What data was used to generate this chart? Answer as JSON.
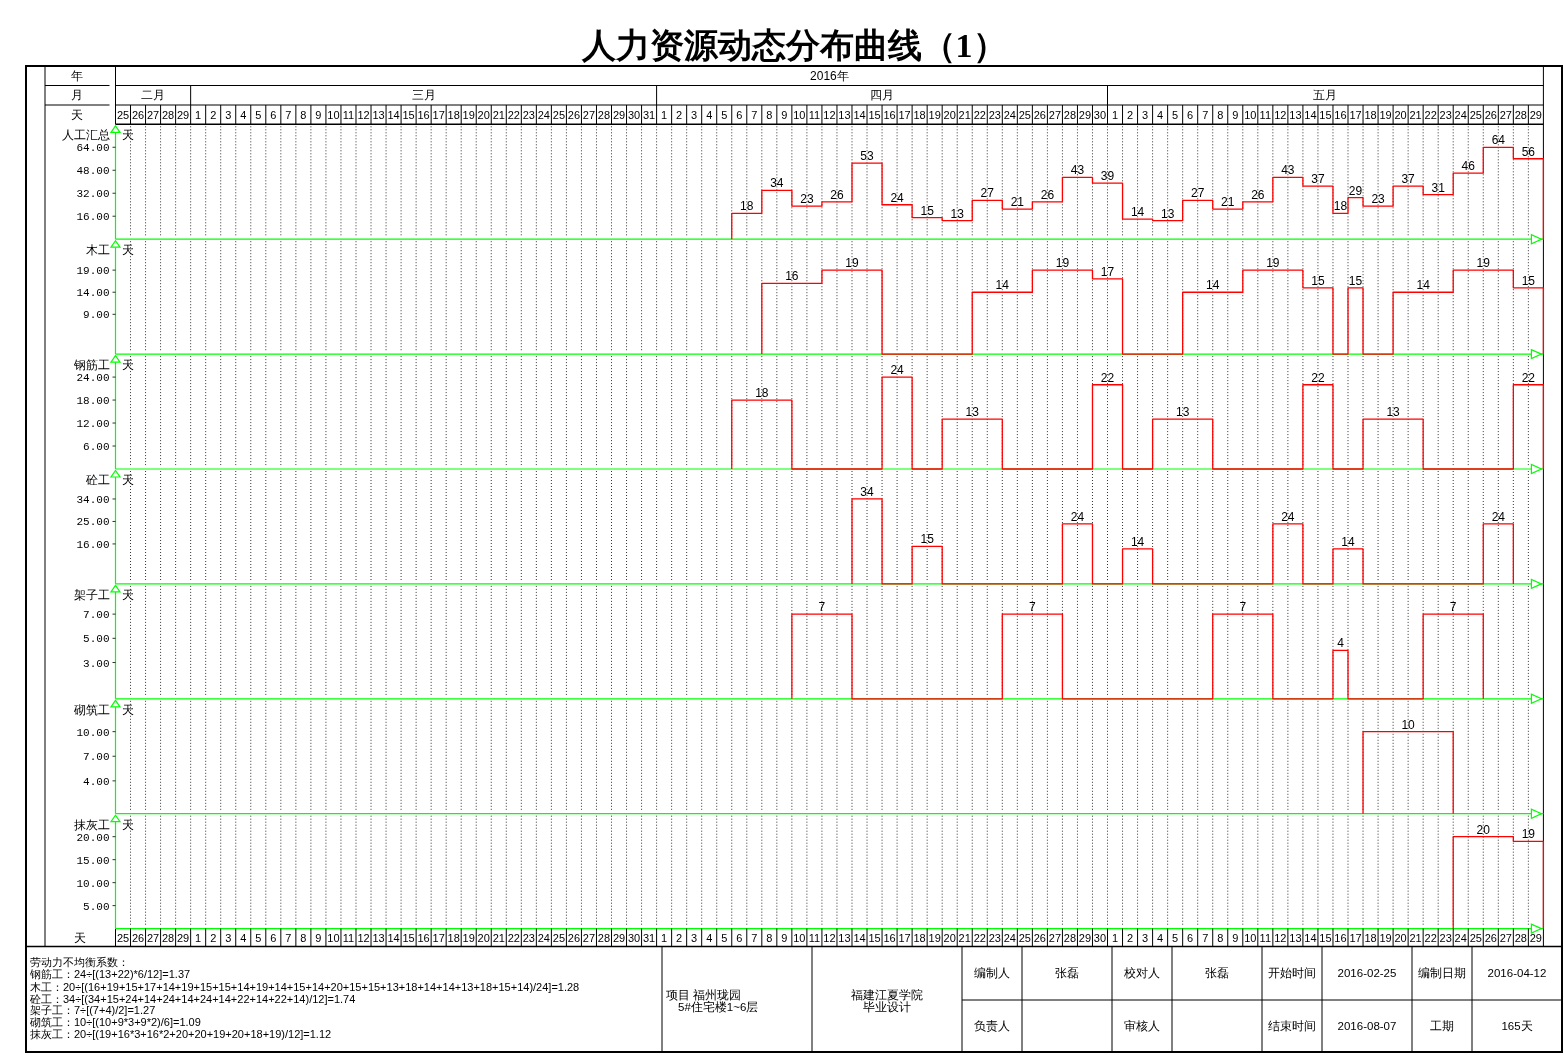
{
  "chart_data": [
    {
      "type": "step",
      "title": "人力资源动态分布曲线（1）",
      "ylabel": "人工汇总",
      "annotations": [
        "天",
        "年",
        "2016年",
        "月",
        "二月",
        "三月",
        "四月",
        "五月"
      ],
      "tick_labels": "y",
      "grid": "x",
      "x": [
        "2016-04-06",
        "2016-04-06",
        "2016-04-07",
        "2016-04-08",
        "2016-04-09",
        "2016-04-10",
        "2016-04-11",
        "2016-04-12",
        "2016-04-13",
        "2016-04-14",
        "2016-04-15",
        "2016-04-16",
        "2016-04-17",
        "2016-04-18",
        "2016-04-19",
        "2016-04-20",
        "2016-04-21",
        "2016-04-22",
        "2016-04-23",
        "2016-04-24",
        "2016-04-25",
        "2016-04-26",
        "2016-04-27",
        "2016-04-28",
        "2016-04-29",
        "2016-04-30",
        "2016-05-01",
        "2016-05-02",
        "2016-05-03",
        "2016-05-04",
        "2016-05-05",
        "2016-05-06",
        "2016-05-07",
        "2016-05-08",
        "2016-05-09",
        "2016-05-10",
        "2016-05-11",
        "2016-05-12",
        "2016-05-13",
        "2016-05-14",
        "2016-05-15",
        "2016-05-16",
        "2016-05-17",
        "2016-05-18",
        "2016-05-19",
        "2016-05-20",
        "2016-05-21",
        "2016-05-22",
        "2016-05-23",
        "2016-05-24",
        "2016-05-25",
        "2016-05-26",
        "2016-05-27",
        "2016-05-28",
        "2016-05-29",
        "2016-05-30"
      ],
      "xlim": [
        "2016-02-25",
        "2016-05-30"
      ],
      "ylim": [
        0,
        80
      ],
      "yticks": [
        {
          "value": 16,
          "label": "16.00"
        },
        {
          "value": 32,
          "label": "32.00"
        },
        {
          "value": 48,
          "label": "48.00"
        },
        {
          "value": 64,
          "label": "64.00"
        }
      ],
      "x2label": "天",
      "x2lim": [
        "2016-02-25",
        "2016-05-30"
      ],
      "x2ticks": [
        {
          "value": "2016-02-25T12:00",
          "label": "25"
        },
        {
          "value": "2016-02-26T12:00",
          "label": "26"
        },
        {
          "value": "2016-02-27T12:00",
          "label": "27"
        },
        {
          "value": "2016-02-28T12:00",
          "label": "28"
        },
        {
          "value": "2016-02-29T12:00",
          "label": "29"
        },
        {
          "value": "2016-03-01T12:00",
          "label": "1"
        },
        {
          "value": "2016-03-02T12:00",
          "label": "2"
        },
        {
          "value": "2016-03-03T12:00",
          "label": "3"
        },
        {
          "value": "2016-03-04T12:00",
          "label": "4"
        },
        {
          "value": "2016-03-05T12:00",
          "label": "5"
        },
        {
          "value": "2016-03-06T12:00",
          "label": "6"
        },
        {
          "value": "2016-03-07T12:00",
          "label": "7"
        },
        {
          "value": "2016-03-08T12:00",
          "label": "8"
        },
        {
          "value": "2016-03-09T12:00",
          "label": "9"
        },
        {
          "value": "2016-03-10T12:00",
          "label": "10"
        },
        {
          "value": "2016-03-11T12:00",
          "label": "11"
        },
        {
          "value": "2016-03-12T12:00",
          "label": "12"
        },
        {
          "value": "2016-03-13T12:00",
          "label": "13"
        },
        {
          "value": "2016-03-14T12:00",
          "label": "14"
        },
        {
          "value": "2016-03-15T12:00",
          "label": "15"
        },
        {
          "value": "2016-03-16T12:00",
          "label": "16"
        },
        {
          "value": "2016-03-17T12:00",
          "label": "17"
        },
        {
          "value": "2016-03-18T12:00",
          "label": "18"
        },
        {
          "value": "2016-03-19T12:00",
          "label": "19"
        },
        {
          "value": "2016-03-20T12:00",
          "label": "20"
        },
        {
          "value": "2016-03-21T12:00",
          "label": "21"
        },
        {
          "value": "2016-03-22T12:00",
          "label": "22"
        },
        {
          "value": "2016-03-23T12:00",
          "label": "23"
        },
        {
          "value": "2016-03-24T12:00",
          "label": "24"
        },
        {
          "value": "2016-03-25T12:00",
          "label": "25"
        },
        {
          "value": "2016-03-26T12:00",
          "label": "26"
        },
        {
          "value": "2016-03-27T12:00",
          "label": "27"
        },
        {
          "value": "2016-03-28T12:00",
          "label": "28"
        },
        {
          "value": "2016-03-29T12:00",
          "label": "29"
        },
        {
          "value": "2016-03-30T12:00",
          "label": "30"
        },
        {
          "value": "2016-03-31T12:00",
          "label": "31"
        },
        {
          "value": "2016-04-01T12:00",
          "label": "1"
        },
        {
          "value": "2016-04-02T12:00",
          "label": "2"
        },
        {
          "value": "2016-04-03T12:00",
          "label": "3"
        },
        {
          "value": "2016-04-04T12:00",
          "label": "4"
        },
        {
          "value": "2016-04-05T12:00",
          "label": "5"
        },
        {
          "value": "2016-04-06T12:00",
          "label": "6"
        },
        {
          "value": "2016-04-07T12:00",
          "label": "7"
        },
        {
          "value": "2016-04-08T12:00",
          "label": "8"
        },
        {
          "value": "2016-04-09T12:00",
          "label": "9"
        },
        {
          "value": "2016-04-10T12:00",
          "label": "10"
        },
        {
          "value": "2016-04-11T12:00",
          "label": "11"
        },
        {
          "value": "2016-04-12T12:00",
          "label": "12"
        },
        {
          "value": "2016-04-13T12:00",
          "label": "13"
        },
        {
          "value": "2016-04-14T12:00",
          "label": "14"
        },
        {
          "value": "2016-04-15T12:00",
          "label": "15"
        },
        {
          "value": "2016-04-16T12:00",
          "label": "16"
        },
        {
          "value": "2016-04-17T12:00",
          "label": "17"
        },
        {
          "value": "2016-04-18T12:00",
          "label": "18"
        },
        {
          "value": "2016-04-19T12:00",
          "label": "19"
        },
        {
          "value": "2016-04-20T12:00",
          "label": "20"
        },
        {
          "value": "2016-04-21T12:00",
          "label": "21"
        },
        {
          "value": "2016-04-22T12:00",
          "label": "22"
        },
        {
          "value": "2016-04-23T12:00",
          "label": "23"
        },
        {
          "value": "2016-04-24T12:00",
          "label": "24"
        },
        {
          "value": "2016-04-25T12:00",
          "label": "25"
        },
        {
          "value": "2016-04-26T12:00",
          "label": "26"
        },
        {
          "value": "2016-04-27T12:00",
          "label": "27"
        },
        {
          "value": "2016-04-28T12:00",
          "label": "28"
        },
        {
          "value": "2016-04-29T12:00",
          "label": "29"
        },
        {
          "value": "2016-04-30T12:00",
          "label": "30"
        },
        {
          "value": "2016-05-01T12:00",
          "label": "1"
        },
        {
          "value": "2016-05-02T12:00",
          "label": "2"
        },
        {
          "value": "2016-05-03T12:00",
          "label": "3"
        },
        {
          "value": "2016-05-04T12:00",
          "label": "4"
        },
        {
          "value": "2016-05-05T12:00",
          "label": "5"
        },
        {
          "value": "2016-05-06T12:00",
          "label": "6"
        },
        {
          "value": "2016-05-07T12:00",
          "label": "7"
        },
        {
          "value": "2016-05-08T12:00",
          "label": "8"
        },
        {
          "value": "2016-05-09T12:00",
          "label": "9"
        },
        {
          "value": "2016-05-10T12:00",
          "label": "10"
        },
        {
          "value": "2016-05-11T12:00",
          "label": "11"
        },
        {
          "value": "2016-05-12T12:00",
          "label": "12"
        },
        {
          "value": "2016-05-13T12:00",
          "label": "13"
        },
        {
          "value": "2016-05-14T12:00",
          "label": "14"
        },
        {
          "value": "2016-05-15T12:00",
          "label": "15"
        },
        {
          "value": "2016-05-16T12:00",
          "label": "16"
        },
        {
          "value": "2016-05-17T12:00",
          "label": "17"
        },
        {
          "value": "2016-05-18T12:00",
          "label": "18"
        },
        {
          "value": "2016-05-19T12:00",
          "label": "19"
        },
        {
          "value": "2016-05-20T12:00",
          "label": "20"
        },
        {
          "value": "2016-05-21T12:00",
          "label": "21"
        },
        {
          "value": "2016-05-22T12:00",
          "label": "22"
        },
        {
          "value": "2016-05-23T12:00",
          "label": "23"
        },
        {
          "value": "2016-05-24T12:00",
          "label": "24"
        },
        {
          "value": "2016-05-25T12:00",
          "label": "25"
        },
        {
          "value": "2016-05-26T12:00",
          "label": "26"
        },
        {
          "value": "2016-05-27T12:00",
          "label": "27"
        },
        {
          "value": "2016-05-28T12:00",
          "label": "28"
        },
        {
          "value": "2016-05-29T12:00",
          "label": "29"
        }
      ],
      "series": [
        {
          "color": "#ff0000",
          "values": [
            0,
            18,
            18,
            34,
            34,
            23,
            23,
            26,
            26,
            53,
            53,
            24,
            24,
            15,
            15,
            13,
            13,
            27,
            27,
            21,
            21,
            26,
            26,
            43,
            43,
            39,
            39,
            14,
            14,
            13,
            13,
            27,
            27,
            21,
            21,
            26,
            26,
            43,
            43,
            37,
            37,
            18,
            29,
            23,
            23,
            37,
            37,
            31,
            31,
            46,
            46,
            64,
            64,
            56,
            56,
            0
          ],
          "value_labels": [
            null,
            null,
            "18",
            null,
            "34",
            null,
            "23",
            null,
            "26",
            null,
            "53",
            null,
            "24",
            null,
            "15",
            null,
            "13",
            null,
            "27",
            null,
            "21",
            null,
            "26",
            null,
            "43",
            null,
            "39",
            null,
            "14",
            null,
            "13",
            null,
            "27",
            null,
            "21",
            null,
            "26",
            null,
            "43",
            null,
            "37",
            "18",
            "29",
            null,
            "23",
            null,
            "37",
            null,
            "31",
            null,
            "46",
            null,
            "64",
            null,
            "56",
            null
          ]
        }
      ]
    },
    {
      "type": "step",
      "ylabel": "木工",
      "annotations": [
        "天"
      ],
      "tick_labels": "y",
      "grid": "x",
      "x": [
        "2016-04-08",
        "2016-04-08",
        "2016-04-09",
        "2016-04-10",
        "2016-04-11",
        "2016-04-12",
        "2016-04-13",
        "2016-04-14",
        "2016-04-15",
        "2016-04-16",
        "2016-04-22",
        "2016-04-23",
        "2016-04-24",
        "2016-04-25",
        "2016-04-26",
        "2016-04-27",
        "2016-04-28",
        "2016-04-29",
        "2016-04-30",
        "2016-05-01",
        "2016-05-02",
        "2016-05-06",
        "2016-05-07",
        "2016-05-08",
        "2016-05-09",
        "2016-05-10",
        "2016-05-11",
        "2016-05-12",
        "2016-05-13",
        "2016-05-14",
        "2016-05-15",
        "2016-05-16",
        "2016-05-17",
        "2016-05-18",
        "2016-05-20",
        "2016-05-21",
        "2016-05-22",
        "2016-05-23",
        "2016-05-24",
        "2016-05-25",
        "2016-05-26",
        "2016-05-27",
        "2016-05-28",
        "2016-05-29",
        "2016-05-30"
      ],
      "xlim": [
        "2016-02-25",
        "2016-05-30"
      ],
      "ylim": [
        0,
        26
      ],
      "yticks": [
        {
          "value": 9,
          "label": "9.00"
        },
        {
          "value": 14,
          "label": "14.00"
        },
        {
          "value": 19,
          "label": "19.00"
        }
      ],
      "series": [
        {
          "color": "#ff0000",
          "values": [
            0,
            16,
            16,
            16,
            16,
            19,
            19,
            19,
            19,
            0,
            14,
            14,
            14,
            14,
            19,
            19,
            19,
            19,
            17,
            17,
            0,
            14,
            14,
            14,
            14,
            19,
            19,
            19,
            19,
            15,
            15,
            0,
            15,
            0,
            14,
            14,
            14,
            14,
            19,
            19,
            19,
            19,
            15,
            15,
            0
          ],
          "value_labels": [
            null,
            null,
            null,
            "16",
            null,
            null,
            null,
            "19",
            null,
            null,
            null,
            null,
            "14",
            null,
            null,
            null,
            "19",
            null,
            null,
            "17",
            null,
            null,
            null,
            "14",
            null,
            null,
            null,
            "19",
            null,
            null,
            "15",
            null,
            "15",
            null,
            null,
            null,
            "14",
            null,
            null,
            null,
            "19",
            null,
            null,
            "15",
            null
          ]
        }
      ]
    },
    {
      "type": "step",
      "ylabel": "钢筋工",
      "annotations": [
        "天"
      ],
      "tick_labels": "y",
      "grid": "x",
      "x": [
        "2016-04-06",
        "2016-04-06",
        "2016-04-07",
        "2016-04-08",
        "2016-04-09",
        "2016-04-10",
        "2016-04-16",
        "2016-04-17",
        "2016-04-18",
        "2016-04-20",
        "2016-04-21",
        "2016-04-22",
        "2016-04-23",
        "2016-04-24",
        "2016-04-30",
        "2016-05-01",
        "2016-05-02",
        "2016-05-04",
        "2016-05-05",
        "2016-05-06",
        "2016-05-07",
        "2016-05-08",
        "2016-05-14",
        "2016-05-15",
        "2016-05-16",
        "2016-05-18",
        "2016-05-19",
        "2016-05-20",
        "2016-05-21",
        "2016-05-22",
        "2016-05-28",
        "2016-05-29",
        "2016-05-30"
      ],
      "xlim": [
        "2016-02-25",
        "2016-05-30"
      ],
      "ylim": [
        0,
        30
      ],
      "yticks": [
        {
          "value": 6,
          "label": "6.00"
        },
        {
          "value": 12,
          "label": "12.00"
        },
        {
          "value": 18,
          "label": "18.00"
        },
        {
          "value": 24,
          "label": "24.00"
        }
      ],
      "series": [
        {
          "color": "#ff0000",
          "values": [
            0,
            18,
            18,
            18,
            18,
            0,
            24,
            24,
            0,
            13,
            13,
            13,
            13,
            0,
            22,
            22,
            0,
            13,
            13,
            13,
            13,
            0,
            22,
            22,
            0,
            13,
            13,
            13,
            13,
            0,
            22,
            22,
            0
          ],
          "value_labels": [
            null,
            null,
            null,
            "18",
            null,
            null,
            null,
            "24",
            null,
            null,
            null,
            "13",
            null,
            null,
            null,
            "22",
            null,
            null,
            null,
            "13",
            null,
            null,
            null,
            "22",
            null,
            null,
            null,
            "13",
            null,
            null,
            null,
            "22",
            null
          ]
        }
      ]
    },
    {
      "type": "step",
      "ylabel": "砼工",
      "annotations": [
        "天"
      ],
      "tick_labels": "y",
      "grid": "x",
      "x": [
        "2016-04-14",
        "2016-04-14",
        "2016-04-15",
        "2016-04-16",
        "2016-04-18",
        "2016-04-19",
        "2016-04-20",
        "2016-04-28",
        "2016-04-29",
        "2016-04-30",
        "2016-05-02",
        "2016-05-03",
        "2016-05-04",
        "2016-05-12",
        "2016-05-13",
        "2016-05-14",
        "2016-05-16",
        "2016-05-17",
        "2016-05-18",
        "2016-05-26",
        "2016-05-27",
        "2016-05-28"
      ],
      "xlim": [
        "2016-02-25",
        "2016-05-30"
      ],
      "ylim": [
        0,
        46
      ],
      "yticks": [
        {
          "value": 16,
          "label": "16.00"
        },
        {
          "value": 25,
          "label": "25.00"
        },
        {
          "value": 34,
          "label": "34.00"
        }
      ],
      "series": [
        {
          "color": "#ff0000",
          "values": [
            0,
            34,
            34,
            0,
            15,
            15,
            0,
            24,
            24,
            0,
            14,
            14,
            0,
            24,
            24,
            0,
            14,
            14,
            0,
            24,
            24,
            0
          ],
          "value_labels": [
            null,
            null,
            "34",
            null,
            null,
            "15",
            null,
            null,
            "24",
            null,
            null,
            "14",
            null,
            null,
            "24",
            null,
            null,
            "14",
            null,
            null,
            "24",
            null
          ]
        }
      ]
    },
    {
      "type": "step",
      "ylabel": "架子工",
      "annotations": [
        "天"
      ],
      "tick_labels": "y",
      "grid": "x",
      "x": [
        "2016-04-10",
        "2016-04-10",
        "2016-04-11",
        "2016-04-12",
        "2016-04-13",
        "2016-04-14",
        "2016-04-24",
        "2016-04-25",
        "2016-04-26",
        "2016-04-27",
        "2016-04-28",
        "2016-05-08",
        "2016-05-09",
        "2016-05-10",
        "2016-05-11",
        "2016-05-12",
        "2016-05-16",
        "2016-05-17",
        "2016-05-22",
        "2016-05-23",
        "2016-05-24",
        "2016-05-25",
        "2016-05-26"
      ],
      "xlim": [
        "2016-02-25",
        "2016-05-30"
      ],
      "ylim": [
        0,
        9.5
      ],
      "yticks": [
        {
          "value": 3,
          "label": "3.00"
        },
        {
          "value": 5,
          "label": "5.00"
        },
        {
          "value": 7,
          "label": "7.00"
        }
      ],
      "series": [
        {
          "color": "#ff0000",
          "values": [
            0,
            7,
            7,
            7,
            7,
            0,
            7,
            7,
            7,
            7,
            0,
            7,
            7,
            7,
            7,
            0,
            4,
            0,
            7,
            7,
            7,
            7,
            0
          ],
          "value_labels": [
            null,
            null,
            null,
            "7",
            null,
            null,
            null,
            null,
            "7",
            null,
            null,
            null,
            null,
            "7",
            null,
            null,
            "4",
            null,
            null,
            null,
            "7",
            null,
            null
          ]
        }
      ]
    },
    {
      "type": "step",
      "ylabel": "砌筑工",
      "annotations": [
        "天"
      ],
      "tick_labels": "y",
      "grid": "x",
      "x": [
        "2016-05-18",
        "2016-05-18",
        "2016-05-19",
        "2016-05-20",
        "2016-05-21",
        "2016-05-22",
        "2016-05-23",
        "2016-05-24"
      ],
      "xlim": [
        "2016-02-25",
        "2016-05-30"
      ],
      "ylim": [
        0,
        14
      ],
      "yticks": [
        {
          "value": 4,
          "label": "4.00"
        },
        {
          "value": 7,
          "label": "7.00"
        },
        {
          "value": 10,
          "label": "10.00"
        }
      ],
      "series": [
        {
          "color": "#ff0000",
          "values": [
            0,
            10,
            10,
            10,
            10,
            10,
            10,
            0
          ],
          "value_labels": [
            null,
            null,
            null,
            null,
            "10",
            null,
            null,
            null
          ]
        }
      ]
    },
    {
      "type": "step",
      "ylabel": "抹灰工",
      "annotations": [
        "天"
      ],
      "grid": "x",
      "xlabel": "天",
      "x": [
        "2016-05-24",
        "2016-05-24",
        "2016-05-25",
        "2016-05-26",
        "2016-05-27",
        "2016-05-28",
        "2016-05-29",
        "2016-05-30"
      ],
      "xlim": [
        "2016-02-25",
        "2016-05-30"
      ],
      "ylim": [
        0,
        25
      ],
      "yticks": [
        {
          "value": 5,
          "label": "5.00"
        },
        {
          "value": 10,
          "label": "10.00"
        },
        {
          "value": 15,
          "label": "15.00"
        },
        {
          "value": 20,
          "label": "20.00"
        }
      ],
      "xticks": [
        {
          "value": "2016-02-25T12:00",
          "label": "25"
        },
        {
          "value": "2016-02-26T12:00",
          "label": "26"
        },
        {
          "value": "2016-02-27T12:00",
          "label": "27"
        },
        {
          "value": "2016-02-28T12:00",
          "label": "28"
        },
        {
          "value": "2016-02-29T12:00",
          "label": "29"
        },
        {
          "value": "2016-03-01T12:00",
          "label": "1"
        },
        {
          "value": "2016-03-02T12:00",
          "label": "2"
        },
        {
          "value": "2016-03-03T12:00",
          "label": "3"
        },
        {
          "value": "2016-03-04T12:00",
          "label": "4"
        },
        {
          "value": "2016-03-05T12:00",
          "label": "5"
        },
        {
          "value": "2016-03-06T12:00",
          "label": "6"
        },
        {
          "value": "2016-03-07T12:00",
          "label": "7"
        },
        {
          "value": "2016-03-08T12:00",
          "label": "8"
        },
        {
          "value": "2016-03-09T12:00",
          "label": "9"
        },
        {
          "value": "2016-03-10T12:00",
          "label": "10"
        },
        {
          "value": "2016-03-11T12:00",
          "label": "11"
        },
        {
          "value": "2016-03-12T12:00",
          "label": "12"
        },
        {
          "value": "2016-03-13T12:00",
          "label": "13"
        },
        {
          "value": "2016-03-14T12:00",
          "label": "14"
        },
        {
          "value": "2016-03-15T12:00",
          "label": "15"
        },
        {
          "value": "2016-03-16T12:00",
          "label": "16"
        },
        {
          "value": "2016-03-17T12:00",
          "label": "17"
        },
        {
          "value": "2016-03-18T12:00",
          "label": "18"
        },
        {
          "value": "2016-03-19T12:00",
          "label": "19"
        },
        {
          "value": "2016-03-20T12:00",
          "label": "20"
        },
        {
          "value": "2016-03-21T12:00",
          "label": "21"
        },
        {
          "value": "2016-03-22T12:00",
          "label": "22"
        },
        {
          "value": "2016-03-23T12:00",
          "label": "23"
        },
        {
          "value": "2016-03-24T12:00",
          "label": "24"
        },
        {
          "value": "2016-03-25T12:00",
          "label": "25"
        },
        {
          "value": "2016-03-26T12:00",
          "label": "26"
        },
        {
          "value": "2016-03-27T12:00",
          "label": "27"
        },
        {
          "value": "2016-03-28T12:00",
          "label": "28"
        },
        {
          "value": "2016-03-29T12:00",
          "label": "29"
        },
        {
          "value": "2016-03-30T12:00",
          "label": "30"
        },
        {
          "value": "2016-03-31T12:00",
          "label": "31"
        },
        {
          "value": "2016-04-01T12:00",
          "label": "1"
        },
        {
          "value": "2016-04-02T12:00",
          "label": "2"
        },
        {
          "value": "2016-04-03T12:00",
          "label": "3"
        },
        {
          "value": "2016-04-04T12:00",
          "label": "4"
        },
        {
          "value": "2016-04-05T12:00",
          "label": "5"
        },
        {
          "value": "2016-04-06T12:00",
          "label": "6"
        },
        {
          "value": "2016-04-07T12:00",
          "label": "7"
        },
        {
          "value": "2016-04-08T12:00",
          "label": "8"
        },
        {
          "value": "2016-04-09T12:00",
          "label": "9"
        },
        {
          "value": "2016-04-10T12:00",
          "label": "10"
        },
        {
          "value": "2016-04-11T12:00",
          "label": "11"
        },
        {
          "value": "2016-04-12T12:00",
          "label": "12"
        },
        {
          "value": "2016-04-13T12:00",
          "label": "13"
        },
        {
          "value": "2016-04-14T12:00",
          "label": "14"
        },
        {
          "value": "2016-04-15T12:00",
          "label": "15"
        },
        {
          "value": "2016-04-16T12:00",
          "label": "16"
        },
        {
          "value": "2016-04-17T12:00",
          "label": "17"
        },
        {
          "value": "2016-04-18T12:00",
          "label": "18"
        },
        {
          "value": "2016-04-19T12:00",
          "label": "19"
        },
        {
          "value": "2016-04-20T12:00",
          "label": "20"
        },
        {
          "value": "2016-04-21T12:00",
          "label": "21"
        },
        {
          "value": "2016-04-22T12:00",
          "label": "22"
        },
        {
          "value": "2016-04-23T12:00",
          "label": "23"
        },
        {
          "value": "2016-04-24T12:00",
          "label": "24"
        },
        {
          "value": "2016-04-25T12:00",
          "label": "25"
        },
        {
          "value": "2016-04-26T12:00",
          "label": "26"
        },
        {
          "value": "2016-04-27T12:00",
          "label": "27"
        },
        {
          "value": "2016-04-28T12:00",
          "label": "28"
        },
        {
          "value": "2016-04-29T12:00",
          "label": "29"
        },
        {
          "value": "2016-04-30T12:00",
          "label": "30"
        },
        {
          "value": "2016-05-01T12:00",
          "label": "1"
        },
        {
          "value": "2016-05-02T12:00",
          "label": "2"
        },
        {
          "value": "2016-05-03T12:00",
          "label": "3"
        },
        {
          "value": "2016-05-04T12:00",
          "label": "4"
        },
        {
          "value": "2016-05-05T12:00",
          "label": "5"
        },
        {
          "value": "2016-05-06T12:00",
          "label": "6"
        },
        {
          "value": "2016-05-07T12:00",
          "label": "7"
        },
        {
          "value": "2016-05-08T12:00",
          "label": "8"
        },
        {
          "value": "2016-05-09T12:00",
          "label": "9"
        },
        {
          "value": "2016-05-10T12:00",
          "label": "10"
        },
        {
          "value": "2016-05-11T12:00",
          "label": "11"
        },
        {
          "value": "2016-05-12T12:00",
          "label": "12"
        },
        {
          "value": "2016-05-13T12:00",
          "label": "13"
        },
        {
          "value": "2016-05-14T12:00",
          "label": "14"
        },
        {
          "value": "2016-05-15T12:00",
          "label": "15"
        },
        {
          "value": "2016-05-16T12:00",
          "label": "16"
        },
        {
          "value": "2016-05-17T12:00",
          "label": "17"
        },
        {
          "value": "2016-05-18T12:00",
          "label": "18"
        },
        {
          "value": "2016-05-19T12:00",
          "label": "19"
        },
        {
          "value": "2016-05-20T12:00",
          "label": "20"
        },
        {
          "value": "2016-05-21T12:00",
          "label": "21"
        },
        {
          "value": "2016-05-22T12:00",
          "label": "22"
        },
        {
          "value": "2016-05-23T12:00",
          "label": "23"
        },
        {
          "value": "2016-05-24T12:00",
          "label": "24"
        },
        {
          "value": "2016-05-25T12:00",
          "label": "25"
        },
        {
          "value": "2016-05-26T12:00",
          "label": "26"
        },
        {
          "value": "2016-05-27T12:00",
          "label": "27"
        },
        {
          "value": "2016-05-28T12:00",
          "label": "28"
        },
        {
          "value": "2016-05-29T12:00",
          "label": "29"
        }
      ],
      "series": [
        {
          "color": "#ff0000",
          "values": [
            0,
            20,
            20,
            20,
            20,
            19,
            19,
            0
          ],
          "value_labels": [
            null,
            null,
            null,
            "20",
            null,
            null,
            "19",
            null
          ]
        }
      ]
    },
    {
      "type": "other",
      "annotations": [
        "劳动力不均衡系数：",
        "钢筋工：24÷[(13+22)*6/12]=1.37",
        "木工：20÷[(16+19+15+17+14+19+15+15+14+19+14+15+14+20+15+15+13+18+14+14+13+18+15+14)/24]=1.28",
        "砼工：34÷[(34+15+24+14+24+14+24+14+22+14+22+14)/12]=1.74",
        "架子工：7÷[(7+4)/2]=1.27",
        "砌筑工：10÷[(10+9*3+9*2)/6]=1.09",
        "抹灰工：20÷[(19+16*3+16*2+20+20+19+20+18+19)/12]=1.12",
        "项目 福州珑园",
        "5#住宅楼1~6层",
        "福建江夏学院",
        "毕业设计",
        "编制人",
        "张磊",
        "校对人",
        "张磊",
        "开始时间",
        "2016-02-25",
        "编制日期",
        "2016-04-12",
        "负责人",
        "审核人",
        "结束时间",
        "2016-08-07",
        "工期",
        "165天"
      ]
    }
  ]
}
